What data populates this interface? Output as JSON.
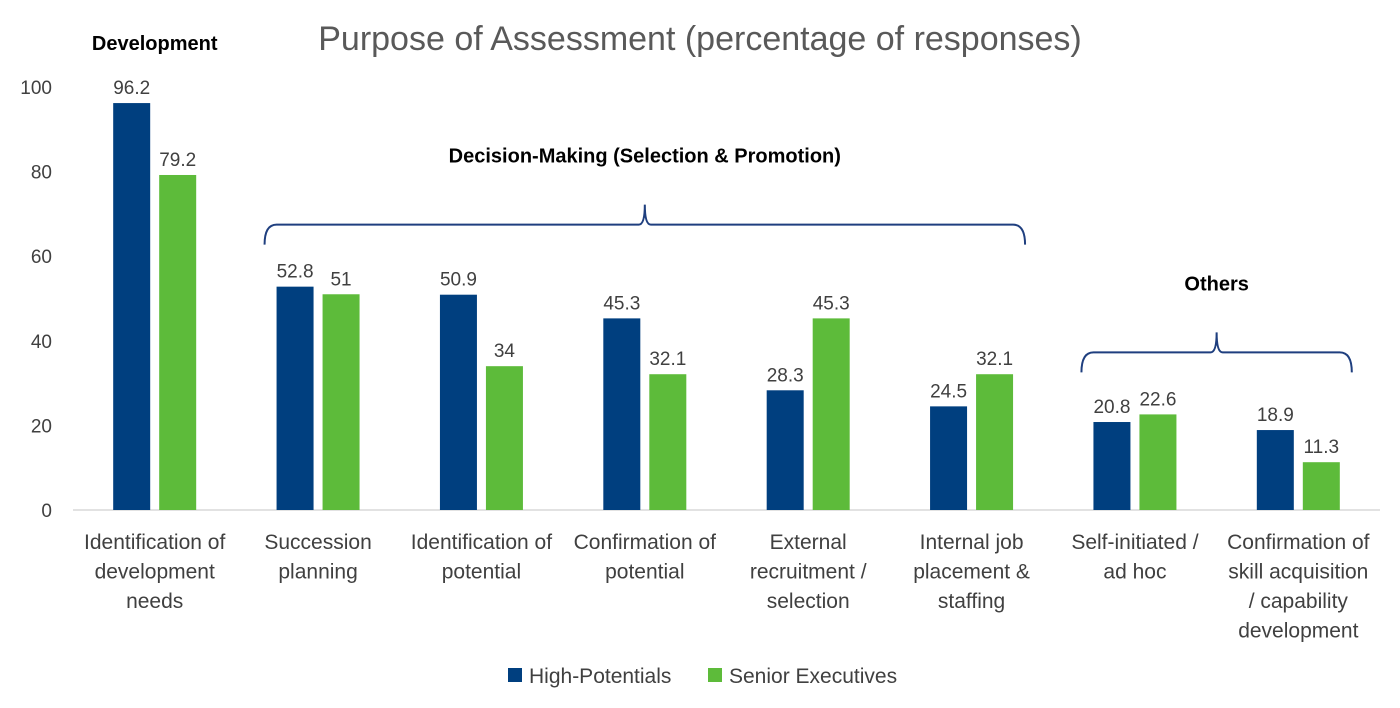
{
  "chart_data": {
    "type": "bar",
    "title": "Purpose of Assessment (percentage of responses)",
    "xlabel": "",
    "ylabel": "",
    "ylim": [
      0,
      100
    ],
    "yticks": [
      0,
      20,
      40,
      60,
      80,
      100
    ],
    "grid": false,
    "legend_position": "bottom",
    "categories": [
      "Identification of development needs",
      "Succession planning",
      "Identification of potential",
      "Confirmation of potential",
      "External recruitment / selection",
      "Internal job placement & staffing",
      "Self-initiated / ad hoc",
      "Confirmation of skill acquisition / capability development"
    ],
    "category_lines": [
      [
        "Identification of",
        "development",
        "needs"
      ],
      [
        "Succession",
        "planning"
      ],
      [
        "Identification of",
        "potential"
      ],
      [
        "Confirmation of",
        "potential"
      ],
      [
        "External",
        "recruitment /",
        "selection"
      ],
      [
        "Internal job",
        "placement &",
        "staffing"
      ],
      [
        "Self-initiated /",
        "ad hoc"
      ],
      [
        "Confirmation of",
        "skill acquisition",
        "/ capability",
        "development"
      ]
    ],
    "series": [
      {
        "name": "High-Potentials",
        "color": "#003F7F",
        "values": [
          96.2,
          52.8,
          50.9,
          45.3,
          28.3,
          24.5,
          20.8,
          18.9
        ]
      },
      {
        "name": "Senior Executives",
        "color": "#5DBB3A",
        "values": [
          79.2,
          51,
          34,
          32.1,
          45.3,
          32.1,
          22.6,
          11.3
        ]
      }
    ],
    "annotations": [
      {
        "text": "Development",
        "categories": [
          0,
          0
        ],
        "bracket": false
      },
      {
        "text": "Decision-Making (Selection & Promotion)",
        "categories": [
          1,
          5
        ],
        "bracket": true
      },
      {
        "text": "Others",
        "categories": [
          6,
          7
        ],
        "bracket": true
      }
    ],
    "bracket_color": "#1F3F7F"
  }
}
